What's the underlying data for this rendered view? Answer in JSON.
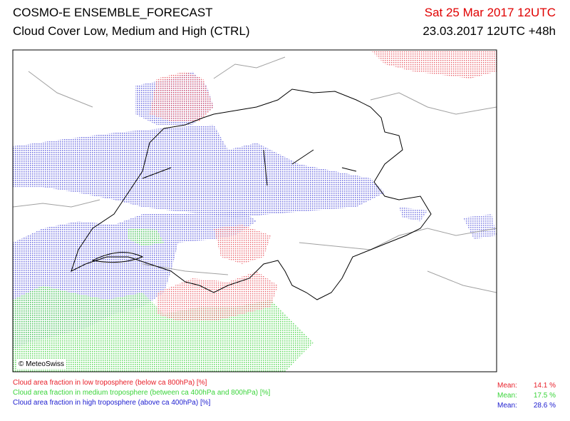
{
  "header": {
    "title": "COSMO-E ENSEMBLE_FORECAST",
    "subtitle": "Cloud Cover Low, Medium and High (CTRL)",
    "valid_time": "Sat 25 Mar 2017 12UTC",
    "run": "23.03.2017 12UTC +48h"
  },
  "map": {
    "credit": "© MeteoSwiss"
  },
  "legend": [
    {
      "label": "Cloud area fraction in low troposphere (below ca 800hPa) [%]",
      "mean_label": "Mean:",
      "mean": "14.1 %",
      "color": "#e8202a"
    },
    {
      "label": "Cloud area fraction in medium troposphere (between ca 400hPa and 800hPa) [%]",
      "mean_label": "Mean:",
      "mean": "17.5 %",
      "color": "#3ad43a"
    },
    {
      "label": "Cloud area fraction in high troposphere (above ca 400hPa) [%]",
      "mean_label": "Mean:",
      "mean": "28.6 %",
      "color": "#2020d0"
    }
  ]
}
